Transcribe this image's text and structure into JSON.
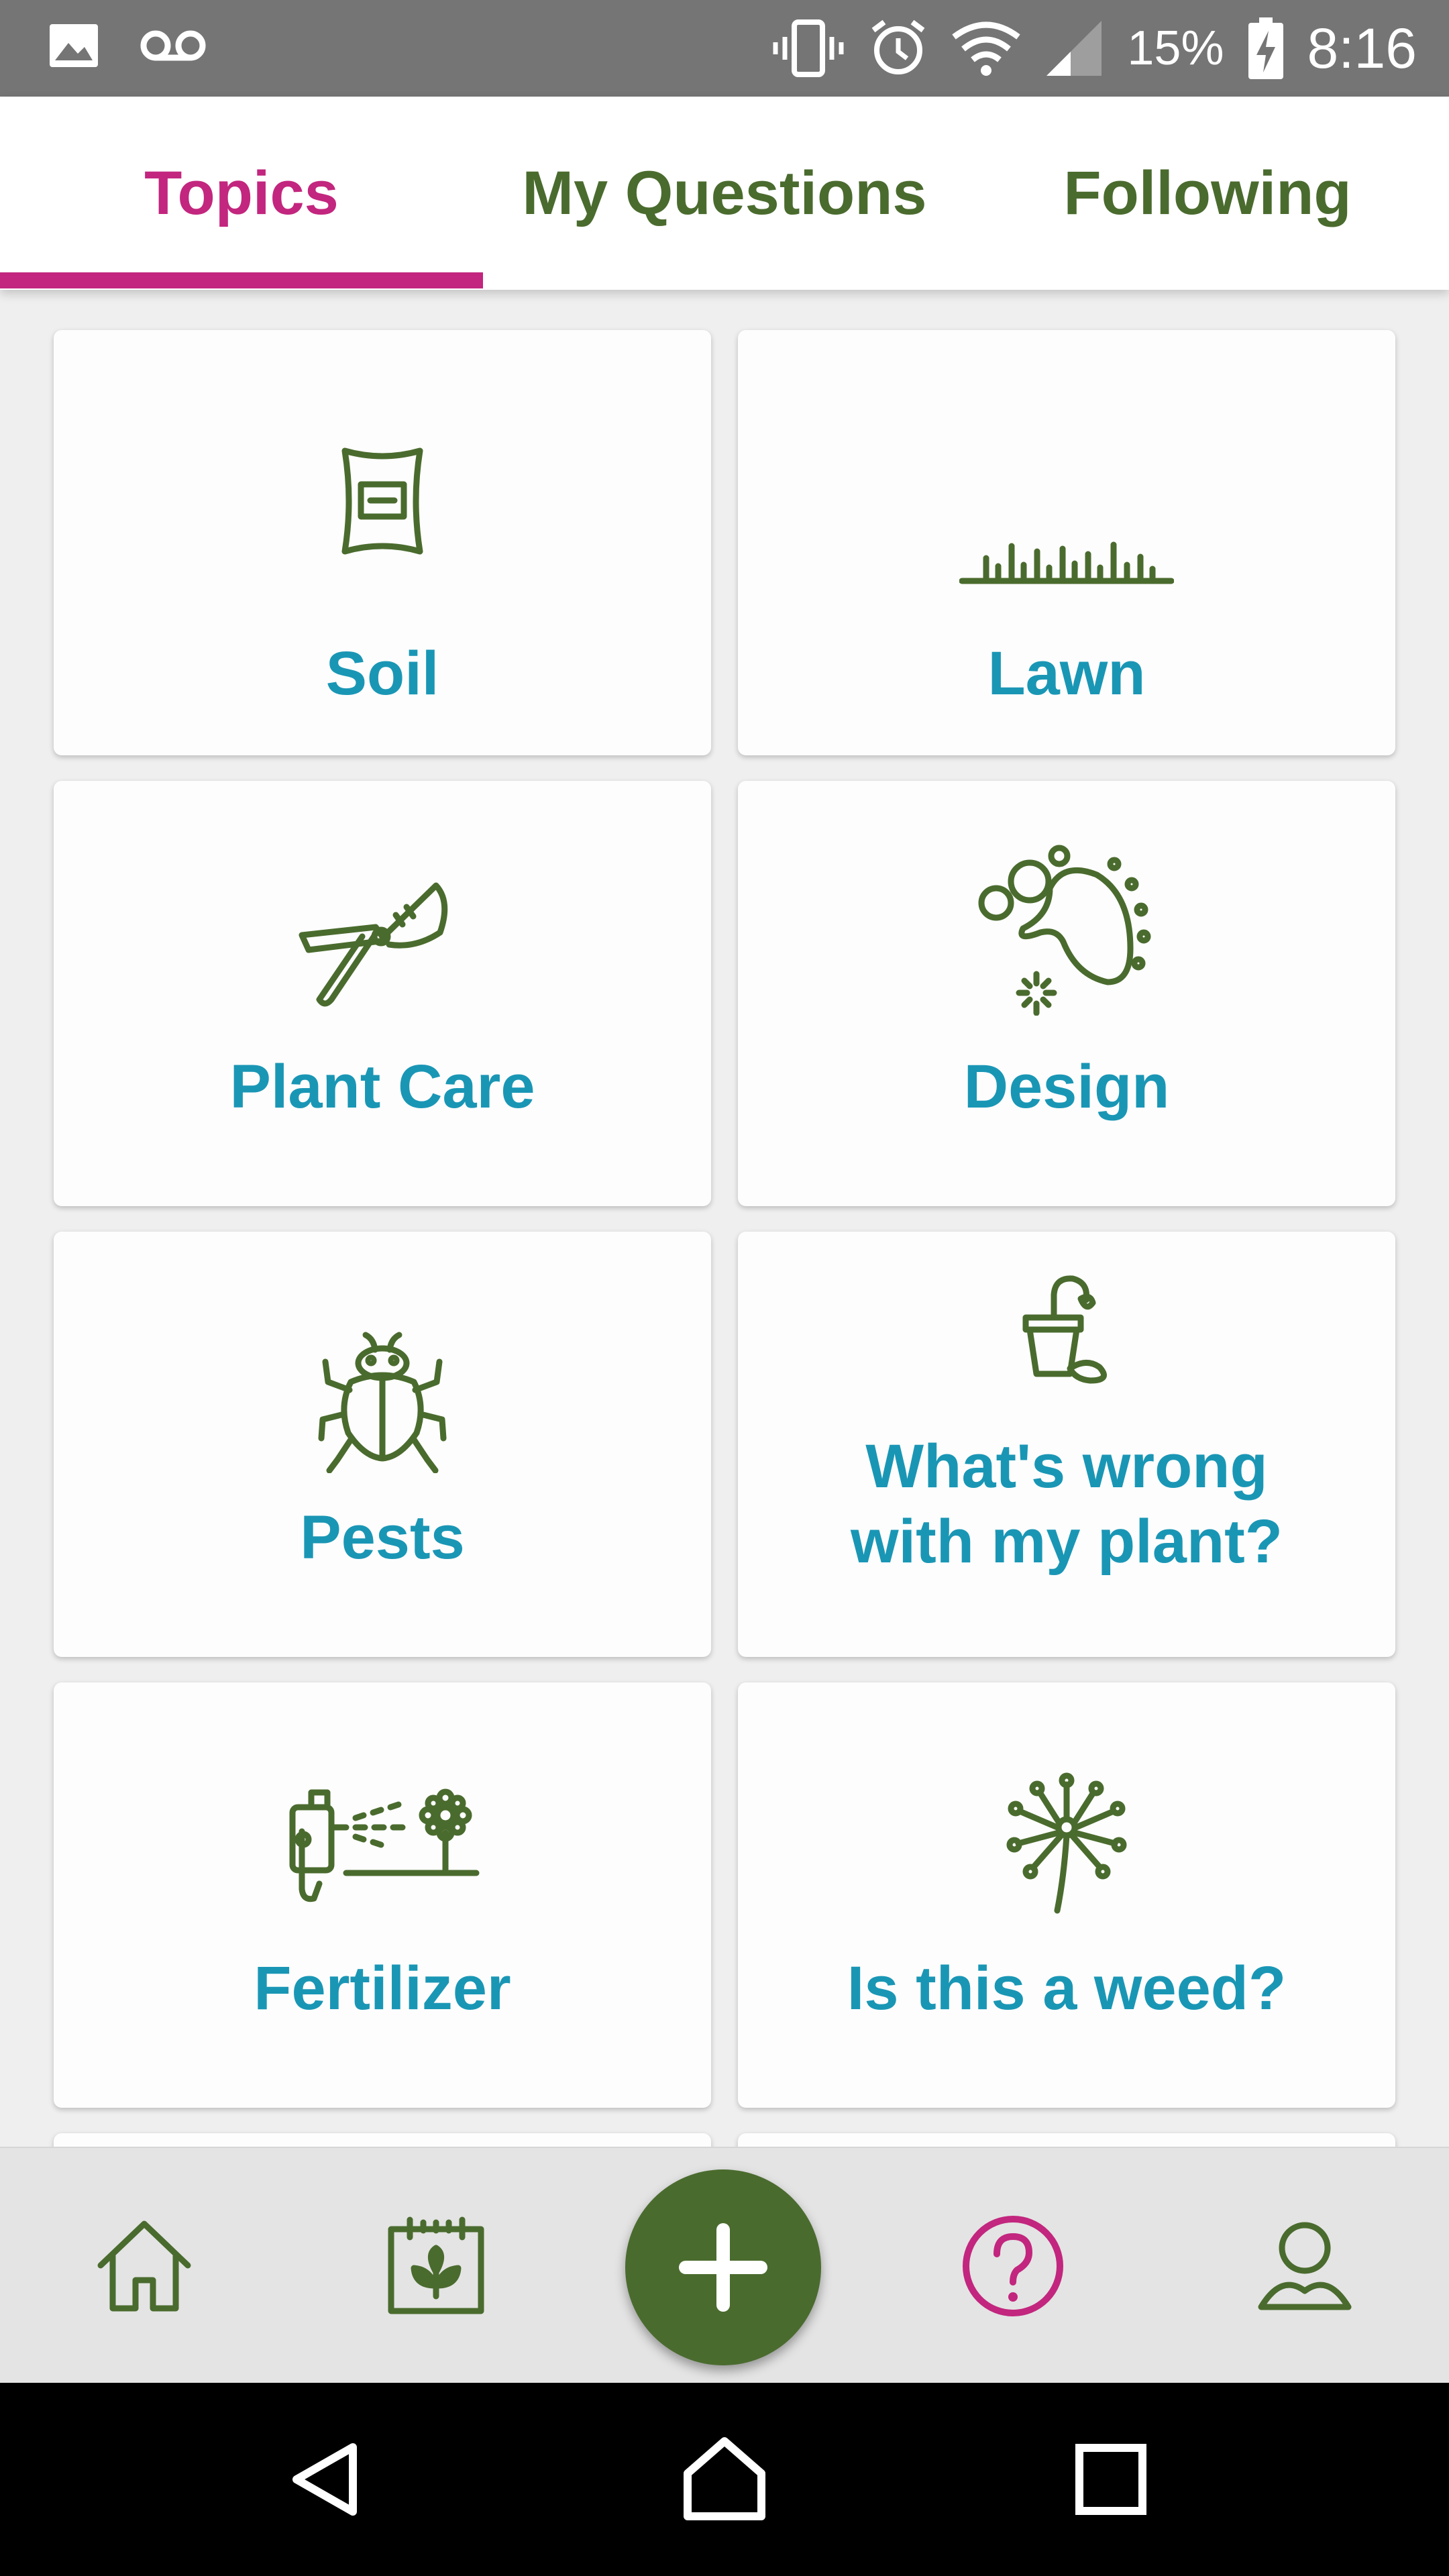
{
  "status_bar": {
    "battery": "15%",
    "time": "8:16",
    "icons": [
      "image-icon",
      "voicemail-icon",
      "vibrate-icon",
      "alarm-icon",
      "wifi-icon",
      "signal-icon",
      "battery-charging-icon"
    ]
  },
  "tabs": [
    {
      "label": "Topics",
      "active": true
    },
    {
      "label": "My Questions",
      "active": false
    },
    {
      "label": "Following",
      "active": false
    }
  ],
  "topics": [
    {
      "label": "Soil",
      "icon": "soil-bag-icon"
    },
    {
      "label": "Lawn",
      "icon": "grass-icon"
    },
    {
      "label": "Plant Care",
      "icon": "pruning-shears-icon"
    },
    {
      "label": "Design",
      "icon": "garden-design-icon"
    },
    {
      "label": "Pests",
      "icon": "beetle-icon"
    },
    {
      "label": "What's wrong\nwith my plant?",
      "icon": "wilted-plant-icon"
    },
    {
      "label": "Fertilizer",
      "icon": "sprayer-icon"
    },
    {
      "label": "Is this a weed?",
      "icon": "dandelion-icon"
    }
  ],
  "bottom_nav": {
    "items": [
      "home-icon",
      "garden-calendar-icon",
      "add-icon",
      "help-question-icon",
      "profile-icon"
    ],
    "active": "help-question-icon"
  },
  "colors": {
    "accent": "#c2267e",
    "primary_green": "#4a6b2e",
    "topic_text": "#1a96b5"
  }
}
